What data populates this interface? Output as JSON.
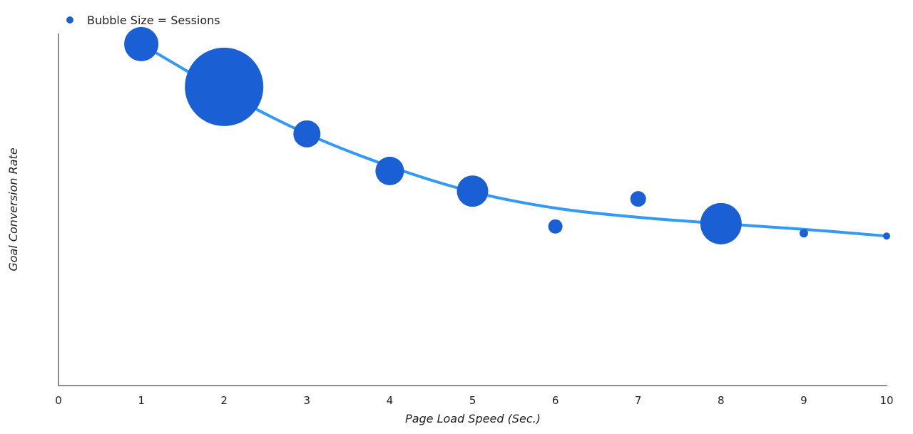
{
  "chart_data": {
    "type": "scatter",
    "subtype": "bubble",
    "title": "",
    "legend": {
      "label": "Bubble Size = Sessions",
      "position": "top-left"
    },
    "xlabel": "Page Load Speed (Sec.)",
    "ylabel": "Goal Conversion Rate",
    "xlim": [
      0,
      10
    ],
    "ylim": [
      0,
      100
    ],
    "x_ticks": [
      "0",
      "1",
      "2",
      "3",
      "4",
      "5",
      "6",
      "7",
      "8",
      "9",
      "10"
    ],
    "y_ticks_shown": false,
    "grid": false,
    "points": [
      {
        "x": 1,
        "y": 96.6,
        "size": 576
      },
      {
        "x": 2,
        "y": 84.5,
        "size": 3025
      },
      {
        "x": 3,
        "y": 71.2,
        "size": 361
      },
      {
        "x": 4,
        "y": 60.7,
        "size": 400
      },
      {
        "x": 5,
        "y": 55.0,
        "size": 484
      },
      {
        "x": 6,
        "y": 45.0,
        "size": 100
      },
      {
        "x": 7,
        "y": 52.8,
        "size": 121
      },
      {
        "x": 8,
        "y": 45.8,
        "size": 841
      },
      {
        "x": 9,
        "y": 43.1,
        "size": 36
      },
      {
        "x": 10,
        "y": 42.3,
        "size": 25
      }
    ],
    "trendline": {
      "x": [
        1,
        2,
        3,
        4,
        5,
        6,
        7,
        8,
        9,
        10
      ],
      "y": [
        96.6,
        83.0,
        71.2,
        62.0,
        54.8,
        50.2,
        47.6,
        45.8,
        44.2,
        42.3
      ]
    },
    "colors": {
      "bubble": "#1a5fd4",
      "trendline": "#3399f3",
      "axis": "#555555"
    }
  }
}
